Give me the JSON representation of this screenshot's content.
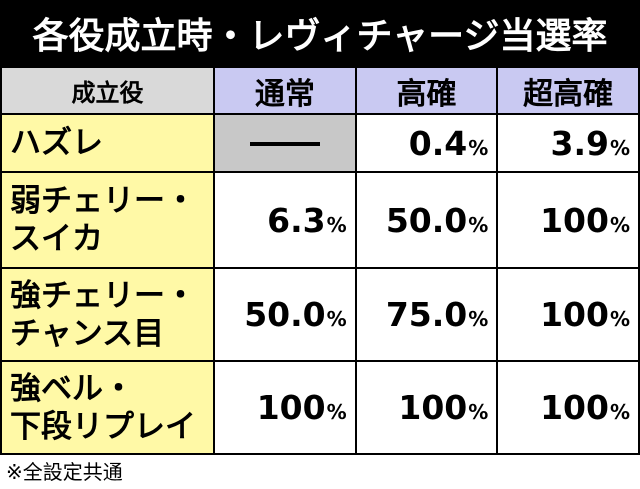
{
  "title": "各役成立時・レヴィチャージ当選率",
  "table": {
    "header_role": "成立役",
    "header_modes": [
      "通常",
      "高確",
      "超高確"
    ],
    "rows": [
      {
        "role_line1": "ハズレ",
        "role_line2": "",
        "values": [
          {
            "num": "",
            "unit": "",
            "na": true
          },
          {
            "num": "0.4",
            "unit": "%"
          },
          {
            "num": "3.9",
            "unit": "%"
          }
        ]
      },
      {
        "role_line1": "弱チェリー・",
        "role_line2": "スイカ",
        "values": [
          {
            "num": "6.3",
            "unit": "%"
          },
          {
            "num": "50.0",
            "unit": "%"
          },
          {
            "num": "100",
            "unit": "%"
          }
        ]
      },
      {
        "role_line1": "強チェリー・",
        "role_line2": "チャンス目",
        "values": [
          {
            "num": "50.0",
            "unit": "%"
          },
          {
            "num": "75.0",
            "unit": "%"
          },
          {
            "num": "100",
            "unit": "%"
          }
        ]
      },
      {
        "role_line1": "強ベル・",
        "role_line2": "下段リプレイ",
        "values": [
          {
            "num": "100",
            "unit": "%"
          },
          {
            "num": "100",
            "unit": "%"
          },
          {
            "num": "100",
            "unit": "%"
          }
        ]
      }
    ]
  },
  "footnote": "※全設定共通",
  "colors": {
    "title_bg": "#000000",
    "header_role_bg": "#d9d9d9",
    "header_mode_bg": "#c9c9f2",
    "role_cell_bg": "#fff9a6",
    "na_cell_bg": "#c8c8c8"
  }
}
